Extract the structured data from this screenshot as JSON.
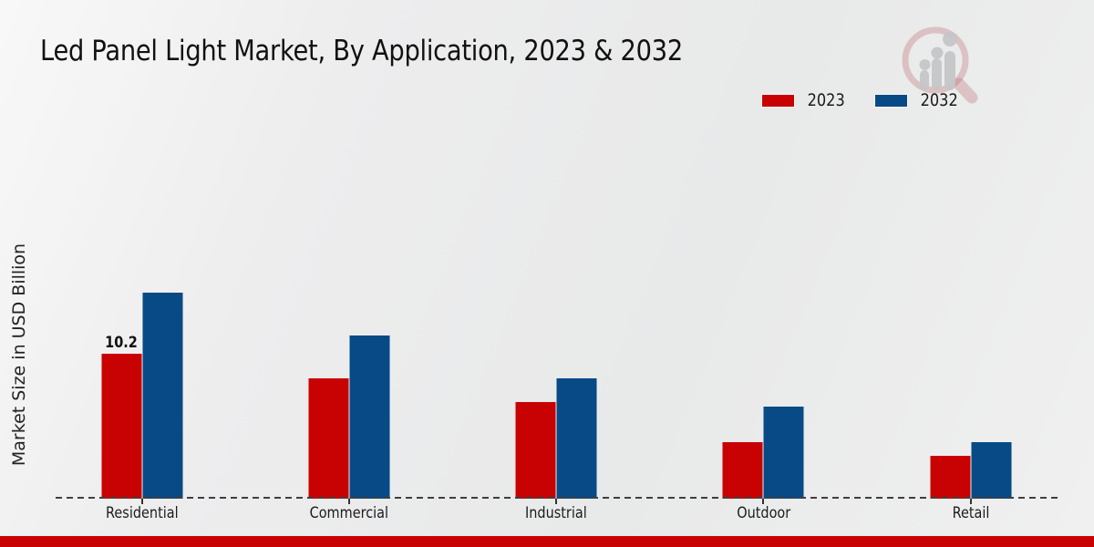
{
  "chart_data": {
    "type": "bar",
    "title": "Led Panel Light Market, By Application, 2023 & 2032",
    "ylabel": "Market Size in USD Billion",
    "xlabel": "",
    "categories": [
      "Residential",
      "Commercial",
      "Industrial",
      "Outdoor",
      "Retail"
    ],
    "series": [
      {
        "name": "2023",
        "color": "#c80202",
        "values": [
          10.2,
          8.5,
          6.8,
          4.0,
          3.0
        ]
      },
      {
        "name": "2032",
        "color": "#074a85",
        "values": [
          14.5,
          11.5,
          8.5,
          6.5,
          4.0
        ]
      }
    ],
    "annotations": [
      {
        "series_index": 0,
        "category_index": 0,
        "text": "10.2"
      }
    ],
    "ylim": [
      0,
      16
    ],
    "grid": false,
    "legend_position": "top-right",
    "baseline_style": "dashed"
  },
  "colors": {
    "series_2023_red": "#c80202",
    "series_2032_blue": "#074a85",
    "baseline_dash": "#3f3f3f",
    "bottom_strip_red": "#c80202",
    "watermark_pink": "#bb5f67",
    "watermark_gray": "#c5c6c8"
  },
  "icons": {
    "watermark": "magnifier-bar-chart-logo"
  }
}
